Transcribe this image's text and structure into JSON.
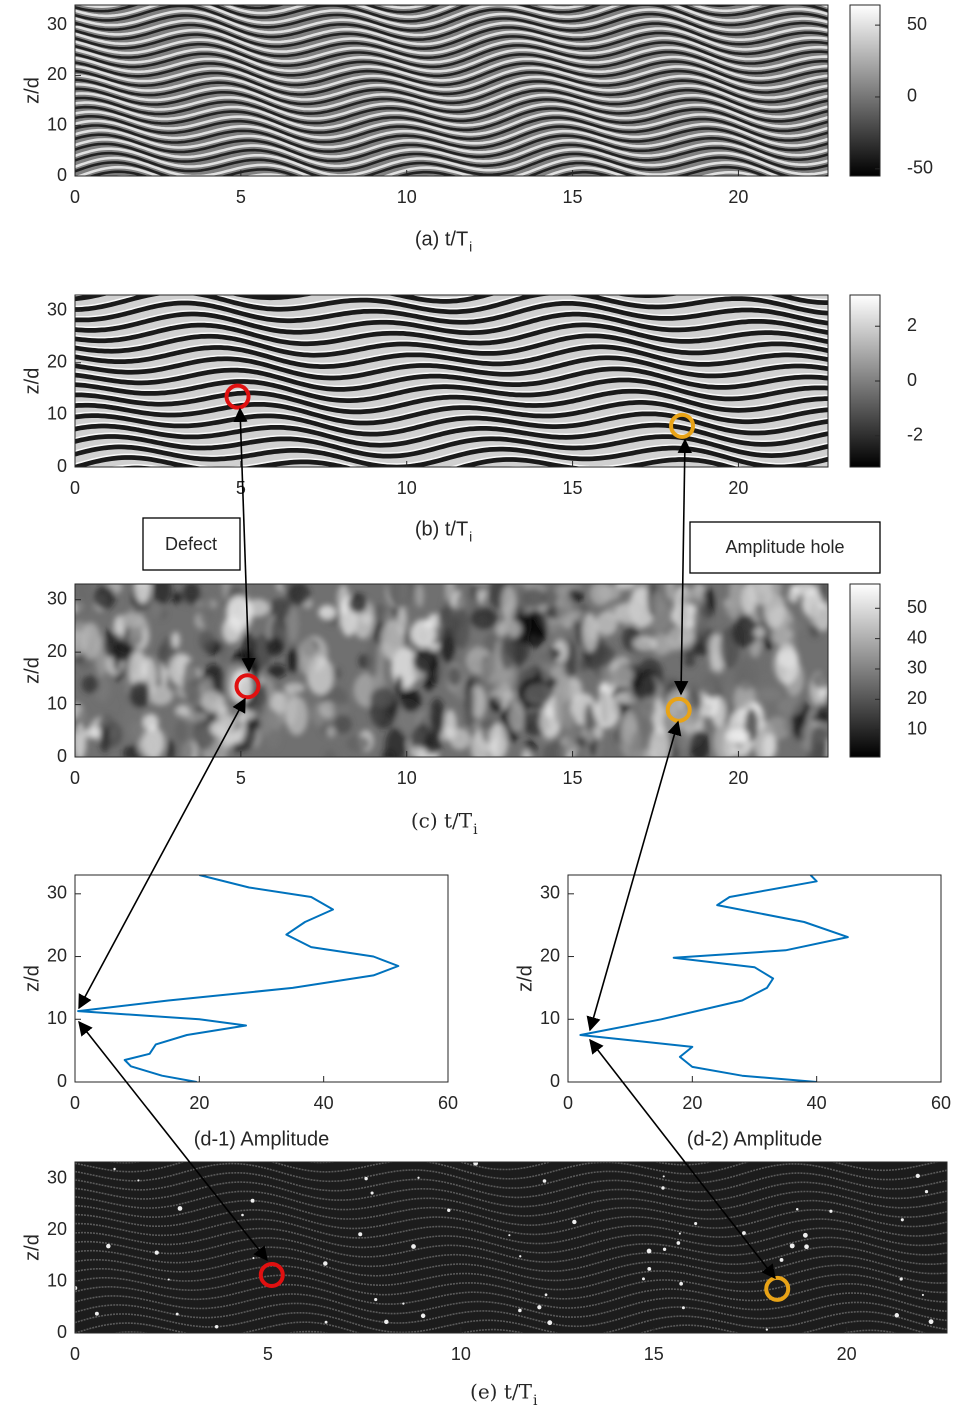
{
  "chart_data": [
    {
      "type": "heatmap",
      "texture": "stripes",
      "xlim": [
        0,
        22.7
      ],
      "ylim": [
        0,
        34
      ],
      "xticks": [
        0,
        5,
        10,
        15,
        20
      ],
      "yticks": [
        0,
        10,
        20,
        30
      ],
      "ylabel": "z/d",
      "xlabel": "(a) t/T",
      "xlabel_sub": "i",
      "xlabel_font": "sans-serif",
      "colorbar": {
        "clim": [
          -55,
          64
        ],
        "ticks": [
          -50,
          0,
          50
        ]
      }
    },
    {
      "type": "heatmap",
      "texture": "phase",
      "xlim": [
        0,
        22.7
      ],
      "ylim": [
        0,
        33
      ],
      "xticks": [
        0,
        5,
        10,
        15,
        20
      ],
      "yticks": [
        0,
        10,
        20,
        30
      ],
      "ylabel": "z/d",
      "xlabel": "(b) t/T",
      "xlabel_sub": "i",
      "xlabel_font": "sans-serif",
      "colorbar": {
        "clim": [
          -3.14,
          3.14
        ],
        "ticks": [
          -2,
          0,
          2
        ]
      },
      "markers": [
        {
          "x": 4.9,
          "y": 13.5,
          "color": "#e01010"
        },
        {
          "x": 18.3,
          "y": 7.9,
          "color": "#e8a317"
        }
      ]
    },
    {
      "type": "heatmap",
      "texture": "blobs",
      "xlim": [
        0,
        22.7
      ],
      "ylim": [
        0,
        33
      ],
      "xticks": [
        0,
        5,
        10,
        15,
        20
      ],
      "yticks": [
        0,
        10,
        20,
        30
      ],
      "ylabel": "z/d",
      "xlabel": "(c) t/T",
      "xlabel_sub": "i",
      "xlabel_font": "serif",
      "colorbar": {
        "clim": [
          1,
          58
        ],
        "ticks": [
          10,
          20,
          30,
          40,
          50
        ]
      },
      "markers": [
        {
          "x": 5.2,
          "y": 13.5,
          "color": "#e01010"
        },
        {
          "x": 18.2,
          "y": 9,
          "color": "#e8a317"
        }
      ]
    },
    {
      "type": "line",
      "color": "#0072bd",
      "xlim": [
        0,
        60
      ],
      "ylim": [
        0,
        33
      ],
      "xticks": [
        0,
        20,
        40,
        60
      ],
      "yticks": [
        0,
        10,
        20,
        30
      ],
      "ylabel": "z/d",
      "xlabel": "(d-1) Amplitude",
      "x": [
        19.6,
        14,
        9,
        8,
        12,
        13,
        18,
        27.5,
        20,
        5,
        0.5,
        15,
        35,
        48,
        52,
        48,
        38,
        34,
        37,
        41.5,
        38,
        28,
        20
      ],
      "values": [
        0,
        1,
        2.5,
        3.5,
        4.5,
        6,
        7.5,
        9,
        10,
        11,
        11.3,
        13,
        15,
        17,
        18.5,
        20,
        21.5,
        23.5,
        25.5,
        27.5,
        29.5,
        31,
        33
      ]
    },
    {
      "type": "line",
      "color": "#0072bd",
      "xlim": [
        0,
        60
      ],
      "ylim": [
        0,
        33
      ],
      "xticks": [
        0,
        20,
        40,
        60
      ],
      "yticks": [
        0,
        10,
        20,
        30
      ],
      "ylabel": "z/d",
      "xlabel": "(d-2) Amplitude",
      "x": [
        40,
        28,
        20,
        18,
        20,
        2,
        15,
        28,
        32,
        33,
        30,
        17,
        35,
        45,
        38,
        24,
        26,
        40,
        39
      ],
      "values": [
        0,
        1,
        2.4,
        4,
        5.6,
        7.5,
        10,
        13,
        15,
        16.5,
        18.3,
        19.8,
        21,
        23.1,
        25.5,
        28.2,
        29.5,
        32,
        33
      ]
    },
    {
      "type": "heatmap",
      "texture": "dark",
      "xlim": [
        0,
        22.6
      ],
      "ylim": [
        0,
        33.3
      ],
      "xticks": [
        0,
        5,
        10,
        15,
        20
      ],
      "yticks": [
        0,
        10,
        20,
        30
      ],
      "ylabel": "z/d",
      "xlabel": "(e) t/T",
      "xlabel_sub": "i",
      "xlabel_font": "serif",
      "markers": [
        {
          "x": 5.1,
          "y": 11.3,
          "color": "#e01010"
        },
        {
          "x": 18.2,
          "y": 8.6,
          "color": "#e8a317"
        }
      ]
    }
  ],
  "notes": [
    "Defect",
    "Amplitude hole"
  ]
}
